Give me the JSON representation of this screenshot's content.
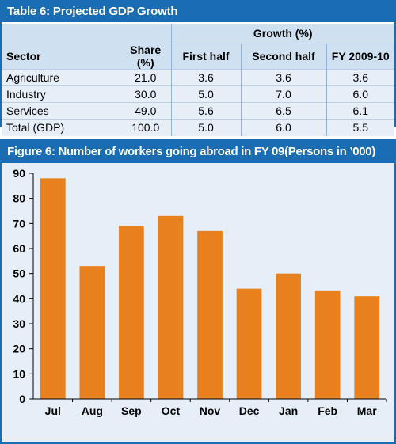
{
  "table": {
    "title": "Table 6: Projected GDP Growth",
    "growth_header": "Growth (%)",
    "columns": [
      "Sector",
      "Share (%)",
      "First half",
      "Second half",
      "FY 2009-10"
    ],
    "rows": [
      [
        "Agriculture",
        "21.0",
        "3.6",
        "3.6",
        "3.6"
      ],
      [
        "Industry",
        "30.0",
        "5.0",
        "7.0",
        "6.0"
      ],
      [
        "Services",
        "49.0",
        "5.6",
        "6.5",
        "6.1"
      ],
      [
        "Total (GDP)",
        "100.0",
        "5.0",
        "6.0",
        "5.5"
      ]
    ],
    "header_bg": "#cfe0f1",
    "row_bg": "#e6eff8"
  },
  "figure": {
    "title": "Figure 6: Number of workers going abroad in FY 09(Persons in ’000)"
  },
  "chart_data": {
    "type": "bar",
    "categories": [
      "Jul",
      "Aug",
      "Sep",
      "Oct",
      "Nov",
      "Dec",
      "Jan",
      "Feb",
      "Mar"
    ],
    "values": [
      88,
      53,
      69,
      73,
      67,
      44,
      50,
      43,
      41
    ],
    "ylim": [
      0,
      90
    ],
    "yticks": [
      0,
      10,
      20,
      30,
      40,
      50,
      60,
      70,
      80,
      90
    ],
    "grid": false,
    "bar_color": "#e8801e",
    "panel_color": "#1a6db3",
    "plot_bg": "#e6eff8"
  }
}
